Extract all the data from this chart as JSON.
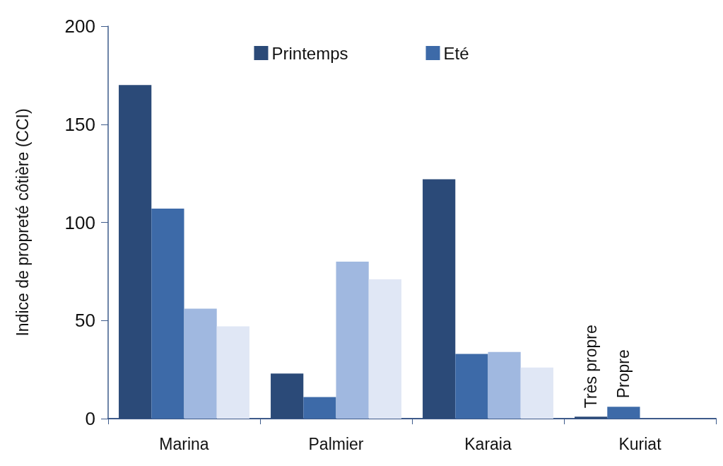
{
  "chart_data": {
    "type": "bar",
    "ylabel": "Indice de propreté côtière (CCI)",
    "categories": [
      "Marina",
      "Palmier",
      "Karaia",
      "Kuriat"
    ],
    "series": [
      {
        "name": "Printemps",
        "color": "#2b4a78",
        "values": [
          170,
          23,
          122,
          1
        ]
      },
      {
        "name": "Eté",
        "color": "#3d6aa8",
        "values": [
          107,
          11,
          33,
          6
        ]
      },
      {
        "color": "#a0b8e0",
        "values": [
          56,
          80,
          34,
          null
        ]
      },
      {
        "color": "#e0e7f5",
        "values": [
          47,
          71,
          26,
          null
        ]
      }
    ],
    "ylim": [
      0,
      200
    ],
    "yticks": [
      0,
      50,
      100,
      150,
      200
    ],
    "grid": false,
    "legend": "top",
    "annotations": [
      {
        "text": "Très propre",
        "x": "Kuriat",
        "y": 1
      },
      {
        "text": "Propre",
        "x": "Kuriat",
        "y": 6
      }
    ]
  }
}
